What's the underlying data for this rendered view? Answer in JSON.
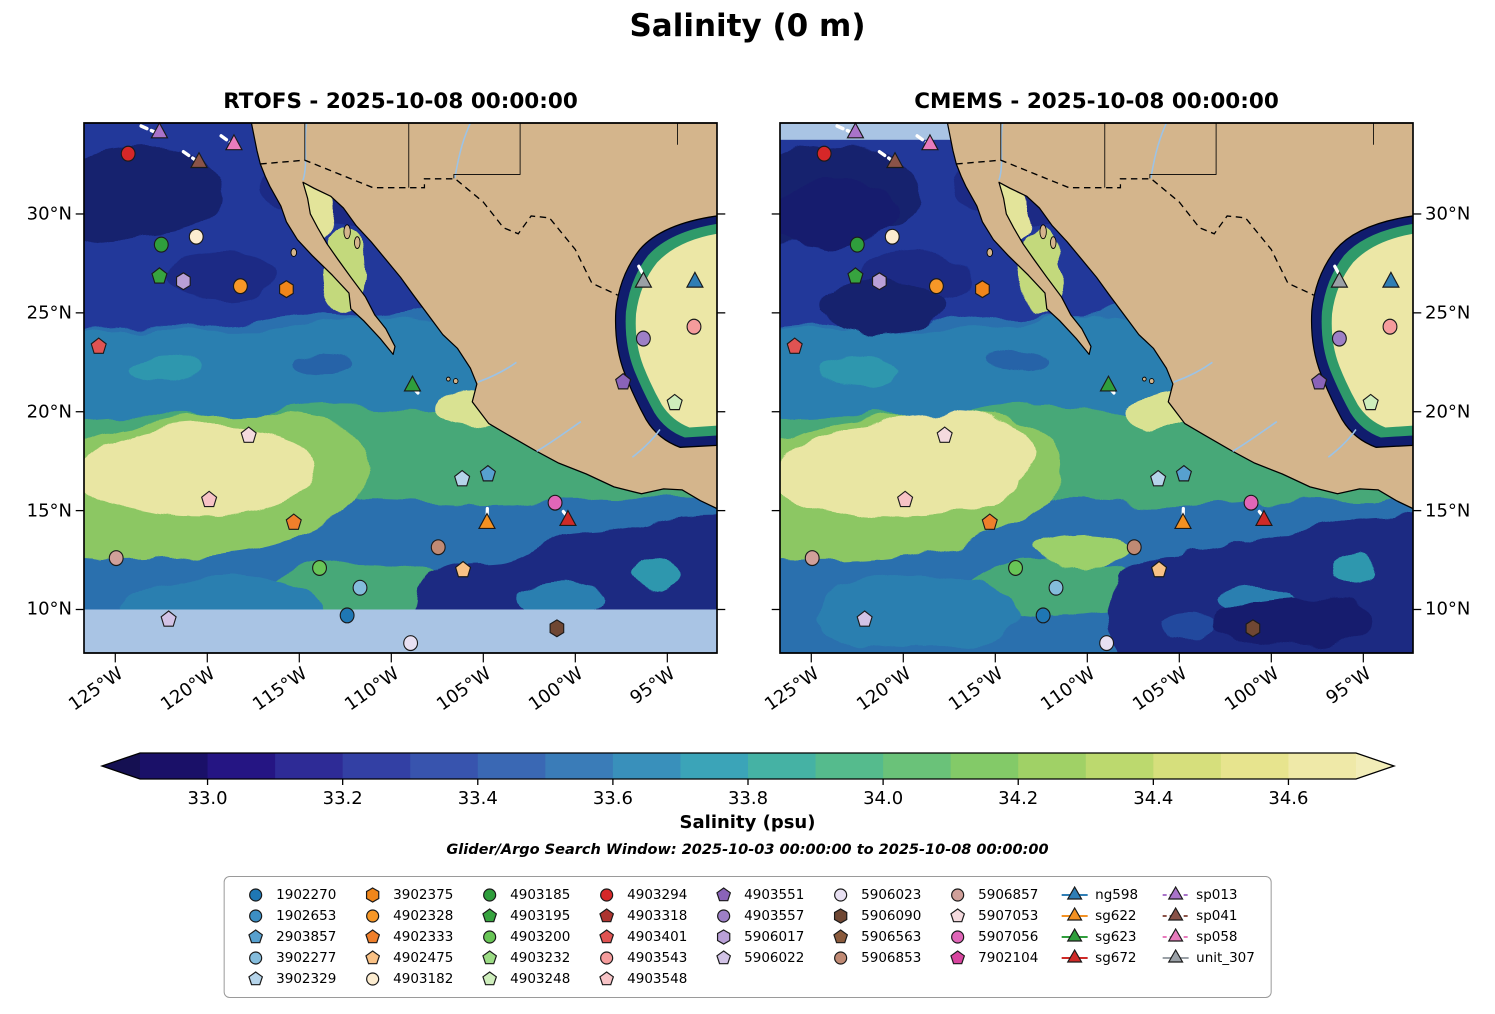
{
  "title": "Salinity (0 m)",
  "subtitle": "Glider/Argo Search Window: 2025-10-03 00:00:00 to 2025-10-08 00:00:00",
  "colorbar": {
    "label": "Salinity (psu)",
    "tick_labels": [
      "33.0",
      "33.2",
      "33.4",
      "33.6",
      "33.8",
      "34.0",
      "34.2",
      "34.4",
      "34.6"
    ],
    "tick_values": [
      33.0,
      33.2,
      33.4,
      33.6,
      33.8,
      34.0,
      34.2,
      34.4,
      34.6
    ],
    "vmin": 32.9,
    "vmax": 34.7,
    "segment_colors": [
      "#1a1068",
      "#251583",
      "#2e2b96",
      "#3340a4",
      "#3854ae",
      "#3a68b4",
      "#3a7cb8",
      "#3990bb",
      "#3ba4b8",
      "#45b2a4",
      "#55bb8d",
      "#6ac279",
      "#83ca68",
      "#a0d166",
      "#bcd96e",
      "#d6df7c",
      "#e7e48e",
      "#efe9a8"
    ],
    "under_color": "#151052",
    "over_color": "#f2edb8"
  },
  "axes": {
    "lat_ticks": [
      {
        "label": "30°N",
        "value": 30
      },
      {
        "label": "25°N",
        "value": 25
      },
      {
        "label": "20°N",
        "value": 20
      },
      {
        "label": "15°N",
        "value": 15
      },
      {
        "label": "10°N",
        "value": 10
      }
    ],
    "lon_ticks": [
      {
        "label": "125°W",
        "value": -125
      },
      {
        "label": "120°W",
        "value": -120
      },
      {
        "label": "115°W",
        "value": -115
      },
      {
        "label": "110°W",
        "value": -110
      },
      {
        "label": "105°W",
        "value": -105
      },
      {
        "label": "100°W",
        "value": -100
      },
      {
        "label": "95°W",
        "value": -95
      }
    ]
  },
  "map_colors": {
    "land": "#d4b58c",
    "coastline": "#000000",
    "nodata": "#a9c4e4",
    "river": "#9cc3e6"
  },
  "legend": {
    "column_sizes": [
      5,
      5,
      5,
      5,
      4,
      4,
      4,
      4,
      4
    ]
  },
  "chart_data": {
    "type": "heatmap",
    "title": "Salinity (0 m)",
    "variable": "Salinity",
    "units": "psu",
    "depth": "0 m",
    "panels": [
      {
        "title": "RTOFS - 2025-10-08 00:00:00",
        "model": "RTOFS",
        "datetime": "2025-10-08 00:00:00",
        "nodata_band": "south"
      },
      {
        "title": "CMEMS - 2025-10-08 00:00:00",
        "model": "CMEMS",
        "datetime": "2025-10-08 00:00:00",
        "nodata_band": "north"
      }
    ],
    "lon_range": [
      -126.7,
      -92.3
    ],
    "lat_range": [
      7.8,
      34.6
    ],
    "colorbar_label": "Salinity (psu)",
    "colorbar_ticks": [
      33.0,
      33.2,
      33.4,
      33.6,
      33.8,
      34.0,
      34.2,
      34.4,
      34.6
    ],
    "search_window": {
      "start": "2025-10-03 00:00:00",
      "end": "2025-10-08 00:00:00"
    },
    "platforms": [
      {
        "id": "1902270",
        "type": "argo",
        "shape": "circle",
        "color": "#1f77b4",
        "lon": -112.4,
        "lat": 9.7
      },
      {
        "id": "1902653",
        "type": "argo",
        "shape": "circle",
        "color": "#3c8ec3"
      },
      {
        "id": "2903857",
        "type": "argo",
        "shape": "pentagon",
        "color": "#57a0cf",
        "lon": -104.75,
        "lat": 16.85
      },
      {
        "id": "3902277",
        "type": "argo",
        "shape": "circle",
        "color": "#84bcdc",
        "lon": -111.7,
        "lat": 11.1
      },
      {
        "id": "3902329",
        "type": "argo",
        "shape": "pentagon",
        "color": "#b5d4ea",
        "lon": -106.15,
        "lat": 16.6
      },
      {
        "id": "3902375",
        "type": "argo",
        "shape": "hexagon",
        "color": "#f0861a",
        "lon": -115.7,
        "lat": 26.2
      },
      {
        "id": "4902328",
        "type": "argo",
        "shape": "circle",
        "color": "#f79727",
        "lon": -118.2,
        "lat": 26.35
      },
      {
        "id": "4902333",
        "type": "argo",
        "shape": "pentagon",
        "color": "#ef7f2b",
        "lon": -115.3,
        "lat": 14.4
      },
      {
        "id": "4902475",
        "type": "argo",
        "shape": "pentagon",
        "color": "#f9c185",
        "lon": -106.1,
        "lat": 12.0
      },
      {
        "id": "4903182",
        "type": "argo",
        "shape": "circle",
        "color": "#fcecd0",
        "lon": -120.6,
        "lat": 28.85
      },
      {
        "id": "4903185",
        "type": "argo",
        "shape": "circle",
        "color": "#2f9e3c",
        "lon": -122.5,
        "lat": 28.45
      },
      {
        "id": "4903195",
        "type": "argo",
        "shape": "pentagon",
        "color": "#37a33f",
        "lon": -122.6,
        "lat": 26.85
      },
      {
        "id": "4903200",
        "type": "argo",
        "shape": "circle",
        "color": "#68c556",
        "lon": -113.9,
        "lat": 12.1
      },
      {
        "id": "4903232",
        "type": "argo",
        "shape": "pentagon",
        "color": "#9cdc85"
      },
      {
        "id": "4903248",
        "type": "argo",
        "shape": "pentagon",
        "color": "#ceeebc",
        "lon": -94.6,
        "lat": 20.45
      },
      {
        "id": "4903294",
        "type": "argo",
        "shape": "circle",
        "color": "#d62728",
        "lon": -124.3,
        "lat": 33.05
      },
      {
        "id": "4903318",
        "type": "argo",
        "shape": "pentagon",
        "color": "#ad3430"
      },
      {
        "id": "4903401",
        "type": "argo",
        "shape": "pentagon",
        "color": "#e05352",
        "lon": -125.9,
        "lat": 23.3
      },
      {
        "id": "4903543",
        "type": "argo",
        "shape": "circle",
        "color": "#f59c9c",
        "lon": -93.55,
        "lat": 24.3
      },
      {
        "id": "4903548",
        "type": "argo",
        "shape": "pentagon",
        "color": "#f7c3c6",
        "lon": -119.9,
        "lat": 15.55
      },
      {
        "id": "4903551",
        "type": "argo",
        "shape": "pentagon",
        "color": "#8a63b8",
        "lon": -97.4,
        "lat": 21.5
      },
      {
        "id": "4903557",
        "type": "argo",
        "shape": "circle",
        "color": "#9d7fc6",
        "lon": -96.3,
        "lat": 23.7
      },
      {
        "id": "5906017",
        "type": "argo",
        "shape": "hexagon",
        "color": "#b9a0d7",
        "lon": -121.3,
        "lat": 26.6
      },
      {
        "id": "5906022",
        "type": "argo",
        "shape": "pentagon",
        "color": "#d2c3e6",
        "lon": -122.1,
        "lat": 9.5
      },
      {
        "id": "5906023",
        "type": "argo",
        "shape": "circle",
        "color": "#e8e0f2",
        "lon": -108.95,
        "lat": 8.3
      },
      {
        "id": "5906090",
        "type": "argo",
        "shape": "hexagon",
        "color": "#6f4733",
        "lon": -101.0,
        "lat": 9.05
      },
      {
        "id": "5906563",
        "type": "argo",
        "shape": "pentagon",
        "color": "#8a5a3c"
      },
      {
        "id": "5906853",
        "type": "argo",
        "shape": "circle",
        "color": "#c08a74",
        "lon": -107.45,
        "lat": 13.15
      },
      {
        "id": "5906857",
        "type": "argo",
        "shape": "circle",
        "color": "#d0a09a",
        "lon": -124.95,
        "lat": 12.6
      },
      {
        "id": "5907053",
        "type": "argo",
        "shape": "pentagon",
        "color": "#f4dade",
        "lon": -117.75,
        "lat": 18.8
      },
      {
        "id": "5907056",
        "type": "argo",
        "shape": "circle",
        "color": "#e066b8",
        "lon": -101.1,
        "lat": 15.4
      },
      {
        "id": "7902104",
        "type": "argo",
        "shape": "pentagon",
        "color": "#d8459f"
      },
      {
        "id": "ng598",
        "type": "glider",
        "shape": "triangle",
        "color": "#2f7eb5",
        "line": "solid",
        "lon": -93.5,
        "lat": 26.55
      },
      {
        "id": "sg622",
        "type": "glider",
        "shape": "triangle",
        "color": "#f39122",
        "line": "solid",
        "lon": -104.8,
        "lat": 14.35
      },
      {
        "id": "sg623",
        "type": "glider",
        "shape": "triangle",
        "color": "#2f9e3c",
        "line": "solid",
        "lon": -108.85,
        "lat": 21.3
      },
      {
        "id": "sg672",
        "type": "glider",
        "shape": "triangle",
        "color": "#cf2a27",
        "line": "solid",
        "lon": -100.4,
        "lat": 14.5
      },
      {
        "id": "sp013",
        "type": "glider",
        "shape": "triangle",
        "color": "#a973c9",
        "line": "dashed",
        "lon": -122.6,
        "lat": 34.1
      },
      {
        "id": "sp041",
        "type": "glider",
        "shape": "triangle",
        "color": "#8a5348",
        "line": "dashed",
        "lon": -120.45,
        "lat": 32.6
      },
      {
        "id": "sp058",
        "type": "glider",
        "shape": "triangle",
        "color": "#e87bbd",
        "line": "dashed",
        "lon": -118.55,
        "lat": 33.5
      },
      {
        "id": "unit_307",
        "type": "glider",
        "shape": "triangle",
        "color": "#9aa0a6",
        "line": "solid",
        "lon": -96.3,
        "lat": 26.55
      }
    ],
    "glider_tracks": [
      {
        "id": "sp013",
        "points": [
          [
            -123.6,
            34.45
          ],
          [
            -122.75,
            34.1
          ]
        ]
      },
      {
        "id": "sp041",
        "points": [
          [
            -121.3,
            33.15
          ],
          [
            -120.6,
            32.7
          ]
        ]
      },
      {
        "id": "sp058",
        "points": [
          [
            -119.25,
            33.95
          ],
          [
            -118.65,
            33.55
          ]
        ]
      },
      {
        "id": "sg623",
        "points": [
          [
            -108.8,
            21.2
          ],
          [
            -108.45,
            20.85
          ]
        ]
      },
      {
        "id": "sg622",
        "points": [
          [
            -104.78,
            15.1
          ],
          [
            -104.8,
            14.45
          ]
        ]
      },
      {
        "id": "sg672",
        "points": [
          [
            -100.65,
            14.95
          ],
          [
            -100.3,
            14.55
          ]
        ]
      },
      {
        "id": "unit_307",
        "points": [
          [
            -96.55,
            27.35
          ],
          [
            -96.2,
            26.75
          ]
        ]
      }
    ]
  }
}
